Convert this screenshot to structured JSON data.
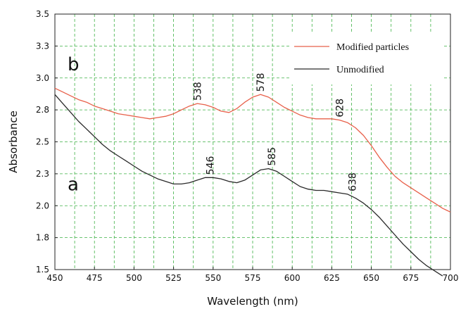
{
  "chart_data": {
    "type": "line",
    "title": "",
    "xlabel": "Wavelength (nm)",
    "ylabel": "Absorbance",
    "xlim": [
      450,
      700
    ],
    "ylim": [
      1.5,
      3.5
    ],
    "grid": true,
    "legend_placement": "top-right",
    "x_ticks": [
      450,
      475,
      500,
      525,
      550,
      575,
      600,
      625,
      650,
      675,
      700
    ],
    "x_tick_labels": [
      "450",
      "475",
      "500",
      "525",
      "550",
      "575",
      "600",
      "625",
      "650",
      "675",
      "700"
    ],
    "y_ticks": [
      1.5,
      1.75,
      2.0,
      2.25,
      2.5,
      2.75,
      3.0,
      3.25,
      3.5
    ],
    "y_tick_labels": [
      "1.5",
      "1.8",
      "2.0",
      "2.3",
      "2.5",
      "2.8",
      "3.0",
      "3.3",
      "3.5"
    ],
    "series": [
      {
        "name": "Modified particles",
        "curve_label": "b",
        "color": "#e8604a",
        "x": [
          450,
          455,
          460,
          465,
          470,
          475,
          480,
          485,
          490,
          495,
          500,
          505,
          510,
          515,
          520,
          525,
          530,
          535,
          540,
          545,
          550,
          555,
          560,
          565,
          570,
          575,
          580,
          585,
          590,
          595,
          600,
          605,
          610,
          615,
          620,
          625,
          630,
          635,
          640,
          645,
          650,
          655,
          660,
          665,
          670,
          675,
          680,
          685,
          690,
          695,
          700
        ],
        "values": [
          2.92,
          2.89,
          2.86,
          2.83,
          2.81,
          2.78,
          2.76,
          2.74,
          2.72,
          2.71,
          2.7,
          2.69,
          2.68,
          2.69,
          2.7,
          2.72,
          2.75,
          2.78,
          2.8,
          2.79,
          2.77,
          2.74,
          2.73,
          2.76,
          2.81,
          2.85,
          2.87,
          2.85,
          2.81,
          2.77,
          2.74,
          2.71,
          2.69,
          2.68,
          2.68,
          2.68,
          2.67,
          2.65,
          2.61,
          2.55,
          2.47,
          2.38,
          2.3,
          2.23,
          2.18,
          2.14,
          2.1,
          2.06,
          2.02,
          1.98,
          1.95
        ]
      },
      {
        "name": "Unmodified",
        "curve_label": "a",
        "color": "#2a2a2a",
        "x": [
          450,
          455,
          460,
          465,
          470,
          475,
          480,
          485,
          490,
          495,
          500,
          505,
          510,
          515,
          520,
          525,
          530,
          535,
          540,
          545,
          550,
          555,
          560,
          565,
          570,
          575,
          580,
          585,
          590,
          595,
          600,
          605,
          610,
          615,
          620,
          625,
          630,
          635,
          640,
          645,
          650,
          655,
          660,
          665,
          670,
          675,
          680,
          685,
          690,
          695
        ],
        "values": [
          2.87,
          2.8,
          2.73,
          2.66,
          2.6,
          2.54,
          2.48,
          2.43,
          2.39,
          2.35,
          2.31,
          2.27,
          2.24,
          2.21,
          2.19,
          2.17,
          2.17,
          2.18,
          2.2,
          2.22,
          2.22,
          2.21,
          2.19,
          2.18,
          2.2,
          2.24,
          2.28,
          2.29,
          2.27,
          2.23,
          2.19,
          2.15,
          2.13,
          2.12,
          2.12,
          2.11,
          2.1,
          2.09,
          2.06,
          2.02,
          1.97,
          1.91,
          1.84,
          1.77,
          1.7,
          1.64,
          1.58,
          1.53,
          1.49,
          1.45
        ]
      }
    ],
    "annotations": [
      {
        "text": "538",
        "series": "Modified particles",
        "x": 540,
        "y": 2.8
      },
      {
        "text": "578",
        "series": "Modified particles",
        "x": 580,
        "y": 2.87
      },
      {
        "text": "628",
        "series": "Modified particles",
        "x": 630,
        "y": 2.67
      },
      {
        "text": "546",
        "series": "Unmodified",
        "x": 548,
        "y": 2.22
      },
      {
        "text": "585",
        "series": "Unmodified",
        "x": 587,
        "y": 2.29
      },
      {
        "text": "638",
        "series": "Unmodified",
        "x": 638,
        "y": 2.09
      }
    ],
    "curve_labels": [
      {
        "text": "b",
        "x": 458,
        "y": 3.06
      },
      {
        "text": "a",
        "x": 458,
        "y": 2.12
      }
    ]
  }
}
